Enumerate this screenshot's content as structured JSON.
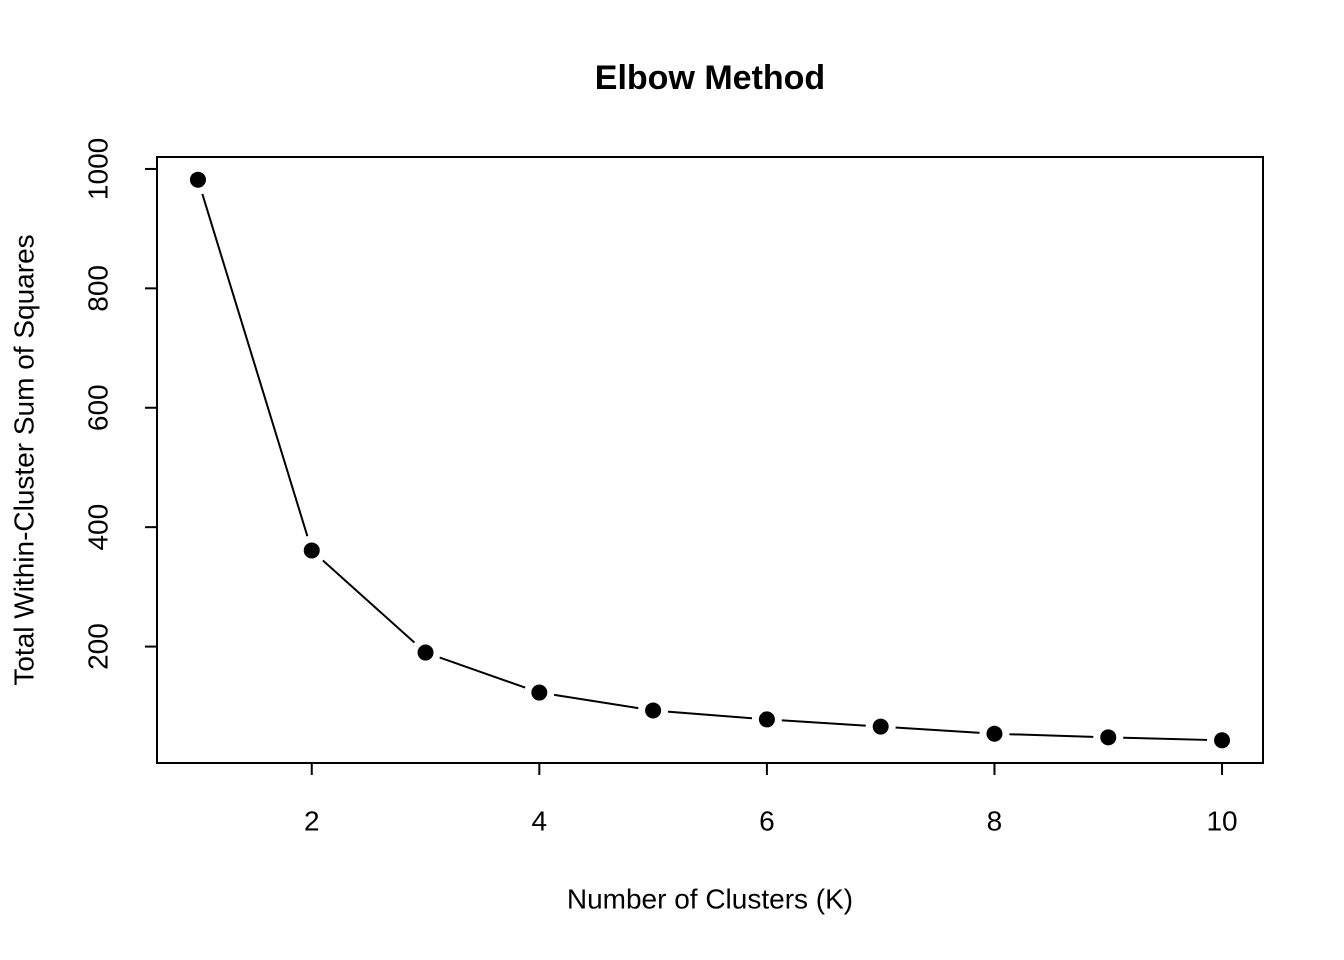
{
  "chart_data": {
    "type": "line",
    "title": "Elbow Method",
    "x_label": "Number of Clusters (K)",
    "y_label": "Total Within-Cluster Sum of Squares",
    "x": [
      1,
      2,
      3,
      4,
      5,
      6,
      7,
      8,
      9,
      10
    ],
    "series": [
      {
        "values": [
          982,
          361,
          190,
          123,
          93,
          78,
          66,
          54,
          48,
          43
        ],
        "color": "#000000"
      }
    ],
    "xlim": [
      0.64,
      10.36
    ],
    "ylim": [
      5,
      1020
    ],
    "xticks": [
      2,
      4,
      6,
      8,
      10
    ],
    "yticks": [
      200,
      400,
      600,
      800,
      1000
    ],
    "markers": true,
    "grid": false
  }
}
